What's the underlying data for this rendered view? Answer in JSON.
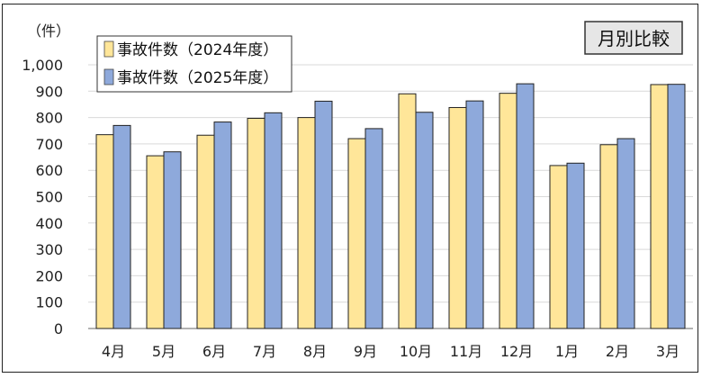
{
  "chart_data": {
    "type": "bar",
    "badge": "月別比較",
    "unit_label": "（件）",
    "categories": [
      "4月",
      "5月",
      "6月",
      "7月",
      "8月",
      "9月",
      "10月",
      "11月",
      "12月",
      "1月",
      "2月",
      "3月"
    ],
    "series": [
      {
        "name": "事故件数（2024年度）",
        "color": "#ffe699",
        "values": [
          735,
          655,
          733,
          797,
          800,
          720,
          890,
          838,
          892,
          618,
          697,
          925
        ]
      },
      {
        "name": "事故件数（2025年度）",
        "color": "#8ea9db",
        "values": [
          770,
          670,
          783,
          818,
          862,
          758,
          820,
          863,
          928,
          627,
          720,
          926
        ]
      }
    ],
    "y_ticks": [
      "0",
      "100",
      "200",
      "300",
      "400",
      "500",
      "600",
      "700",
      "800",
      "900",
      "1,000"
    ],
    "ylim": [
      0,
      1000
    ],
    "grid": true,
    "legend_position": "top-left"
  }
}
